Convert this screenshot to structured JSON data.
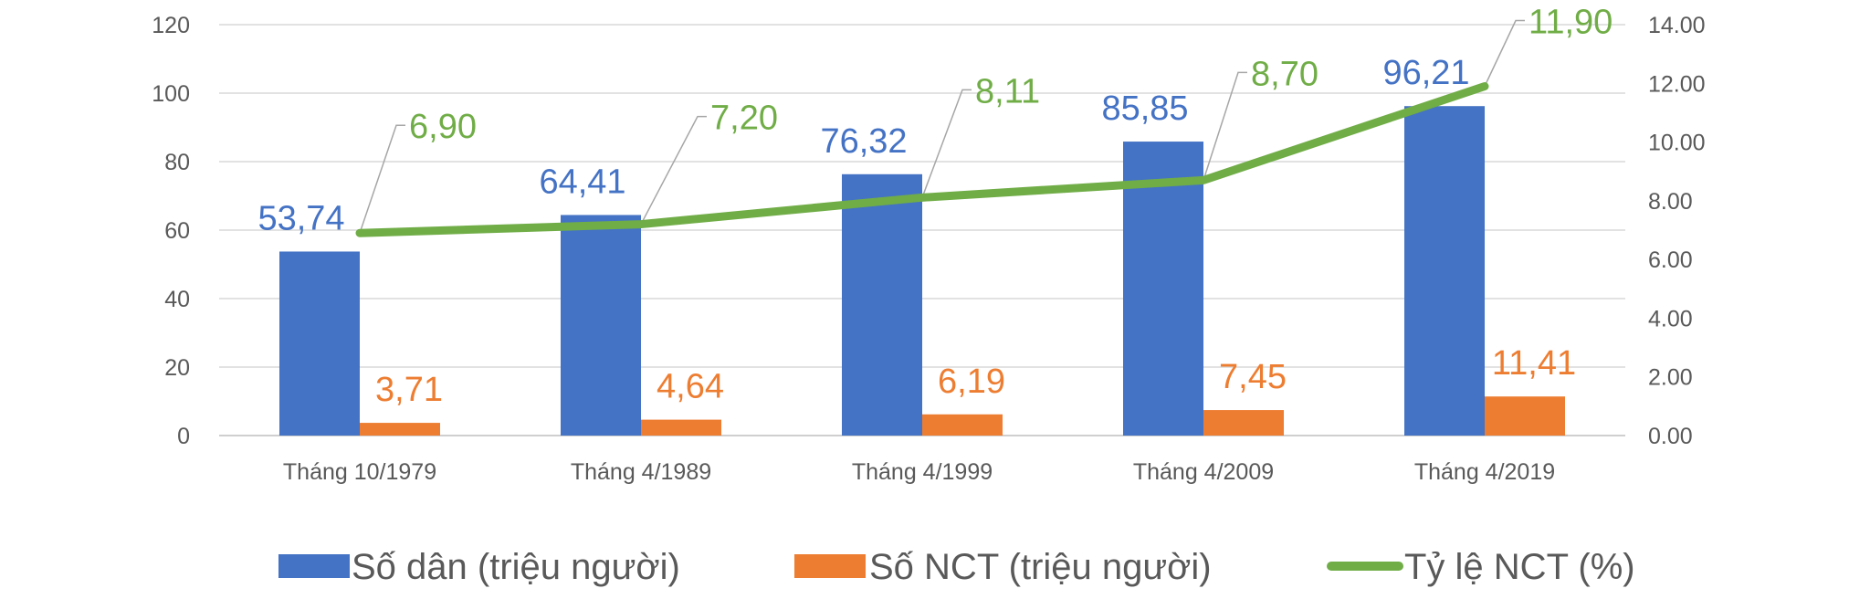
{
  "chart_data": {
    "type": "bar",
    "categories": [
      "Tháng 10/1979",
      "Tháng 4/1989",
      "Tháng 4/1999",
      "Tháng 4/2009",
      "Tháng 4/2019"
    ],
    "series": [
      {
        "name": "Số dân (triệu người)",
        "type": "bar",
        "axis": "left",
        "color": "#4472C4",
        "values": [
          53.74,
          64.41,
          76.32,
          85.85,
          96.21
        ],
        "labels": [
          "53,74",
          "64,41",
          "76,32",
          "85,85",
          "96,21"
        ]
      },
      {
        "name": "Số NCT (triệu người)",
        "type": "bar",
        "axis": "left",
        "color": "#ED7D31",
        "values": [
          3.71,
          4.64,
          6.19,
          7.45,
          11.41
        ],
        "labels": [
          "3,71",
          "4,64",
          "6,19",
          "7,45",
          "11,41"
        ]
      },
      {
        "name": "Tỷ lệ NCT (%)",
        "type": "line",
        "axis": "right",
        "color": "#70AD47",
        "values": [
          6.9,
          7.2,
          8.11,
          8.7,
          11.9
        ],
        "labels": [
          "6,90",
          "7,20",
          "8,11",
          "8,70",
          "11,90"
        ]
      }
    ],
    "y_left": {
      "range": [
        0,
        120
      ],
      "ticks": [
        "0",
        "20",
        "40",
        "60",
        "80",
        "100",
        "120"
      ]
    },
    "y_right": {
      "range": [
        0,
        14
      ],
      "ticks": [
        "0.00",
        "2.00",
        "4.00",
        "6.00",
        "8.00",
        "10.00",
        "12.00",
        "14.00"
      ]
    },
    "grid": true,
    "legend": "bottom",
    "title": "",
    "xlabel": "",
    "ylabel": ""
  }
}
